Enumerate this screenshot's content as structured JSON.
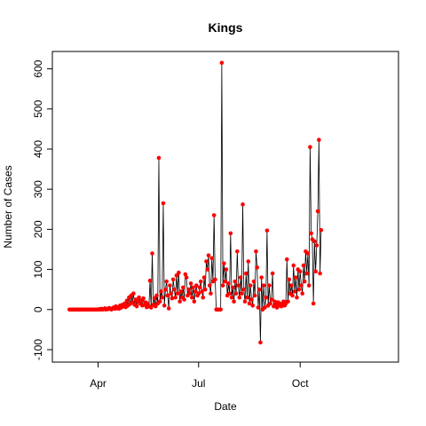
{
  "chart_data": {
    "type": "line",
    "title": "Kings",
    "xlabel": "Date",
    "ylabel": "Number of Cases",
    "ylim": [
      -100,
      630
    ],
    "yticks": [
      -100,
      0,
      100,
      200,
      300,
      400,
      500,
      600
    ],
    "xlim": [
      "2020-03-01",
      "2020-12-17"
    ],
    "xticks": [
      {
        "date": "2020-04-01",
        "label": "Apr"
      },
      {
        "date": "2020-07-01",
        "label": "Jul"
      },
      {
        "date": "2020-10-01",
        "label": "Oct"
      }
    ],
    "line_color": "#000000",
    "point_color": "#ff0000",
    "grid": false,
    "series": [
      {
        "values": [
          [
            "2020-03-06",
            0
          ],
          [
            "2020-03-07",
            0
          ],
          [
            "2020-03-08",
            0
          ],
          [
            "2020-03-09",
            0
          ],
          [
            "2020-03-10",
            0
          ],
          [
            "2020-03-11",
            0
          ],
          [
            "2020-03-12",
            0
          ],
          [
            "2020-03-13",
            0
          ],
          [
            "2020-03-14",
            0
          ],
          [
            "2020-03-15",
            0
          ],
          [
            "2020-03-16",
            0
          ],
          [
            "2020-03-17",
            0
          ],
          [
            "2020-03-18",
            0
          ],
          [
            "2020-03-19",
            0
          ],
          [
            "2020-03-20",
            0
          ],
          [
            "2020-03-21",
            0
          ],
          [
            "2020-03-22",
            0
          ],
          [
            "2020-03-23",
            0
          ],
          [
            "2020-03-24",
            0
          ],
          [
            "2020-03-25",
            0
          ],
          [
            "2020-03-26",
            0
          ],
          [
            "2020-03-27",
            0
          ],
          [
            "2020-03-28",
            0
          ],
          [
            "2020-03-29",
            0
          ],
          [
            "2020-03-30",
            0
          ],
          [
            "2020-03-31",
            0
          ],
          [
            "2020-04-01",
            0
          ],
          [
            "2020-04-02",
            1
          ],
          [
            "2020-04-03",
            0
          ],
          [
            "2020-04-04",
            2
          ],
          [
            "2020-04-05",
            0
          ],
          [
            "2020-04-06",
            1
          ],
          [
            "2020-04-07",
            3
          ],
          [
            "2020-04-08",
            0
          ],
          [
            "2020-04-09",
            2
          ],
          [
            "2020-04-10",
            1
          ],
          [
            "2020-04-11",
            4
          ],
          [
            "2020-04-12",
            2
          ],
          [
            "2020-04-13",
            0
          ],
          [
            "2020-04-14",
            3
          ],
          [
            "2020-04-15",
            5
          ],
          [
            "2020-04-16",
            2
          ],
          [
            "2020-04-17",
            8
          ],
          [
            "2020-04-18",
            3
          ],
          [
            "2020-04-19",
            6
          ],
          [
            "2020-04-20",
            2
          ],
          [
            "2020-04-21",
            10
          ],
          [
            "2020-04-22",
            5
          ],
          [
            "2020-04-23",
            12
          ],
          [
            "2020-04-24",
            8
          ],
          [
            "2020-04-25",
            15
          ],
          [
            "2020-04-26",
            6
          ],
          [
            "2020-04-27",
            22
          ],
          [
            "2020-04-28",
            10
          ],
          [
            "2020-04-29",
            30
          ],
          [
            "2020-04-30",
            14
          ],
          [
            "2020-05-01",
            35
          ],
          [
            "2020-05-02",
            18
          ],
          [
            "2020-05-03",
            40
          ],
          [
            "2020-05-04",
            12
          ],
          [
            "2020-05-05",
            25
          ],
          [
            "2020-05-06",
            8
          ],
          [
            "2020-05-07",
            20
          ],
          [
            "2020-05-08",
            30
          ],
          [
            "2020-05-09",
            15
          ],
          [
            "2020-05-10",
            22
          ],
          [
            "2020-05-11",
            10
          ],
          [
            "2020-05-12",
            28
          ],
          [
            "2020-05-13",
            12
          ],
          [
            "2020-05-14",
            18
          ],
          [
            "2020-05-15",
            6
          ],
          [
            "2020-05-16",
            15
          ],
          [
            "2020-05-17",
            8
          ],
          [
            "2020-05-18",
            72
          ],
          [
            "2020-05-19",
            5
          ],
          [
            "2020-05-20",
            140
          ],
          [
            "2020-05-21",
            12
          ],
          [
            "2020-05-22",
            28
          ],
          [
            "2020-05-23",
            8
          ],
          [
            "2020-05-24",
            35
          ],
          [
            "2020-05-25",
            15
          ],
          [
            "2020-05-26",
            378
          ],
          [
            "2020-05-27",
            20
          ],
          [
            "2020-05-28",
            45
          ],
          [
            "2020-05-29",
            30
          ],
          [
            "2020-05-30",
            265
          ],
          [
            "2020-05-31",
            10
          ],
          [
            "2020-06-01",
            50
          ],
          [
            "2020-06-02",
            70
          ],
          [
            "2020-06-03",
            35
          ],
          [
            "2020-06-04",
            3
          ],
          [
            "2020-06-05",
            60
          ],
          [
            "2020-06-06",
            40
          ],
          [
            "2020-06-07",
            28
          ],
          [
            "2020-06-08",
            75
          ],
          [
            "2020-06-09",
            50
          ],
          [
            "2020-06-10",
            30
          ],
          [
            "2020-06-11",
            85
          ],
          [
            "2020-06-12",
            40
          ],
          [
            "2020-06-13",
            92
          ],
          [
            "2020-06-14",
            20
          ],
          [
            "2020-06-15",
            45
          ],
          [
            "2020-06-16",
            30
          ],
          [
            "2020-06-17",
            55
          ],
          [
            "2020-06-18",
            25
          ],
          [
            "2020-06-19",
            88
          ],
          [
            "2020-06-20",
            80
          ],
          [
            "2020-06-21",
            35
          ],
          [
            "2020-06-22",
            50
          ],
          [
            "2020-06-23",
            40
          ],
          [
            "2020-06-24",
            65
          ],
          [
            "2020-06-25",
            30
          ],
          [
            "2020-06-26",
            55
          ],
          [
            "2020-06-27",
            20
          ],
          [
            "2020-06-28",
            45
          ],
          [
            "2020-06-29",
            60
          ],
          [
            "2020-06-30",
            35
          ],
          [
            "2020-07-01",
            40
          ],
          [
            "2020-07-02",
            55
          ],
          [
            "2020-07-03",
            70
          ],
          [
            "2020-07-04",
            45
          ],
          [
            "2020-07-05",
            30
          ],
          [
            "2020-07-06",
            80
          ],
          [
            "2020-07-07",
            50
          ],
          [
            "2020-07-08",
            120
          ],
          [
            "2020-07-09",
            100
          ],
          [
            "2020-07-10",
            135
          ],
          [
            "2020-07-11",
            60
          ],
          [
            "2020-07-12",
            40
          ],
          [
            "2020-07-13",
            128
          ],
          [
            "2020-07-14",
            70
          ],
          [
            "2020-07-15",
            235
          ],
          [
            "2020-07-16",
            75
          ],
          [
            "2020-07-17",
            0
          ],
          [
            "2020-07-18",
            0
          ],
          [
            "2020-07-19",
            0
          ],
          [
            "2020-07-20",
            0
          ],
          [
            "2020-07-21",
            0
          ],
          [
            "2020-07-22",
            615
          ],
          [
            "2020-07-23",
            60
          ],
          [
            "2020-07-24",
            115
          ],
          [
            "2020-07-25",
            70
          ],
          [
            "2020-07-26",
            100
          ],
          [
            "2020-07-27",
            35
          ],
          [
            "2020-07-28",
            65
          ],
          [
            "2020-07-29",
            40
          ],
          [
            "2020-07-30",
            190
          ],
          [
            "2020-07-31",
            30
          ],
          [
            "2020-08-01",
            55
          ],
          [
            "2020-08-02",
            20
          ],
          [
            "2020-08-03",
            70
          ],
          [
            "2020-08-04",
            40
          ],
          [
            "2020-08-05",
            145
          ],
          [
            "2020-08-06",
            60
          ],
          [
            "2020-08-07",
            30
          ],
          [
            "2020-08-08",
            80
          ],
          [
            "2020-08-09",
            40
          ],
          [
            "2020-08-10",
            262
          ],
          [
            "2020-08-11",
            50
          ],
          [
            "2020-08-12",
            20
          ],
          [
            "2020-08-13",
            90
          ],
          [
            "2020-08-14",
            30
          ],
          [
            "2020-08-15",
            120
          ],
          [
            "2020-08-16",
            15
          ],
          [
            "2020-08-17",
            60
          ],
          [
            "2020-08-18",
            25
          ],
          [
            "2020-08-19",
            10
          ],
          [
            "2020-08-20",
            70
          ],
          [
            "2020-08-21",
            35
          ],
          [
            "2020-08-22",
            145
          ],
          [
            "2020-08-23",
            105
          ],
          [
            "2020-08-24",
            5
          ],
          [
            "2020-08-25",
            50
          ],
          [
            "2020-08-26",
            -82
          ],
          [
            "2020-08-27",
            80
          ],
          [
            "2020-08-28",
            0
          ],
          [
            "2020-08-29",
            60
          ],
          [
            "2020-08-30",
            5
          ],
          [
            "2020-08-31",
            30
          ],
          [
            "2020-09-01",
            197
          ],
          [
            "2020-09-02",
            10
          ],
          [
            "2020-09-03",
            60
          ],
          [
            "2020-09-04",
            15
          ],
          [
            "2020-09-05",
            25
          ],
          [
            "2020-09-06",
            90
          ],
          [
            "2020-09-07",
            8
          ],
          [
            "2020-09-08",
            20
          ],
          [
            "2020-09-09",
            12
          ],
          [
            "2020-09-10",
            5
          ],
          [
            "2020-09-11",
            18
          ],
          [
            "2020-09-12",
            10
          ],
          [
            "2020-09-13",
            15
          ],
          [
            "2020-09-14",
            8
          ],
          [
            "2020-09-15",
            12
          ],
          [
            "2020-09-16",
            20
          ],
          [
            "2020-09-17",
            10
          ],
          [
            "2020-09-18",
            15
          ],
          [
            "2020-09-19",
            125
          ],
          [
            "2020-09-20",
            20
          ],
          [
            "2020-09-21",
            75
          ],
          [
            "2020-09-22",
            40
          ],
          [
            "2020-09-23",
            60
          ],
          [
            "2020-09-24",
            35
          ],
          [
            "2020-09-25",
            110
          ],
          [
            "2020-09-26",
            45
          ],
          [
            "2020-09-27",
            80
          ],
          [
            "2020-09-28",
            30
          ],
          [
            "2020-09-29",
            100
          ],
          [
            "2020-09-30",
            50
          ],
          [
            "2020-10-01",
            95
          ],
          [
            "2020-10-02",
            60
          ],
          [
            "2020-10-03",
            40
          ],
          [
            "2020-10-04",
            110
          ],
          [
            "2020-10-05",
            70
          ],
          [
            "2020-10-06",
            145
          ],
          [
            "2020-10-07",
            90
          ],
          [
            "2020-10-08",
            140
          ],
          [
            "2020-10-09",
            60
          ],
          [
            "2020-10-10",
            405
          ],
          [
            "2020-10-11",
            190
          ],
          [
            "2020-10-12",
            175
          ],
          [
            "2020-10-13",
            15
          ],
          [
            "2020-10-14",
            170
          ],
          [
            "2020-10-15",
            95
          ],
          [
            "2020-10-16",
            160
          ],
          [
            "2020-10-17",
            245
          ],
          [
            "2020-10-18",
            423
          ],
          [
            "2020-10-19",
            90
          ],
          [
            "2020-10-20",
            198
          ]
        ]
      }
    ]
  }
}
